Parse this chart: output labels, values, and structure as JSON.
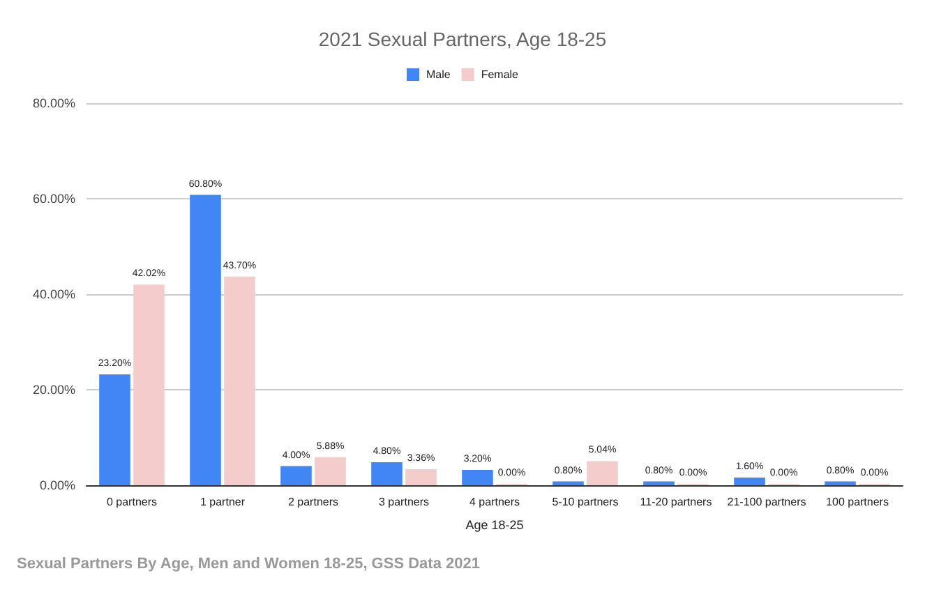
{
  "chart_data": {
    "type": "bar",
    "title": "2021 Sexual Partners, Age 18-25",
    "xlabel": "Age 18-25",
    "categories": [
      "0 partners",
      "1 partner",
      "2 partners",
      "3 partners",
      "4 partners",
      "5-10 partners",
      "11-20 partners",
      "21-100 partners",
      "100 partners"
    ],
    "series": [
      {
        "name": "Male",
        "color": "#4285f4",
        "values": [
          23.2,
          60.8,
          4.0,
          4.8,
          3.2,
          0.8,
          0.8,
          1.6,
          0.8
        ],
        "value_labels": [
          "23.20%",
          "60.80%",
          "4.00%",
          "4.80%",
          "3.20%",
          "0.80%",
          "0.80%",
          "1.60%",
          "0.80%"
        ]
      },
      {
        "name": "Female",
        "color": "#f4cccc",
        "values": [
          42.02,
          43.7,
          5.88,
          3.36,
          0,
          5.04,
          0,
          0,
          0
        ],
        "value_labels": [
          "42.02%",
          "43.70%",
          "5.88%",
          "3.36%",
          "0.00%",
          "5.04%",
          "0.00%",
          "0.00%",
          "0.00%"
        ]
      }
    ],
    "ylim": [
      0,
      80
    ],
    "yticks": [
      {
        "value": 0,
        "label": "0.00%"
      },
      {
        "value": 20,
        "label": "20.00%"
      },
      {
        "value": 40,
        "label": "40.00%"
      },
      {
        "value": 60,
        "label": "60.00%"
      },
      {
        "value": 80,
        "label": "80.00%"
      }
    ],
    "grid": "y",
    "legend": "top",
    "annotations": [
      "Sexual Partners By Age, Men and Women 18-25, GSS Data 2021"
    ]
  }
}
